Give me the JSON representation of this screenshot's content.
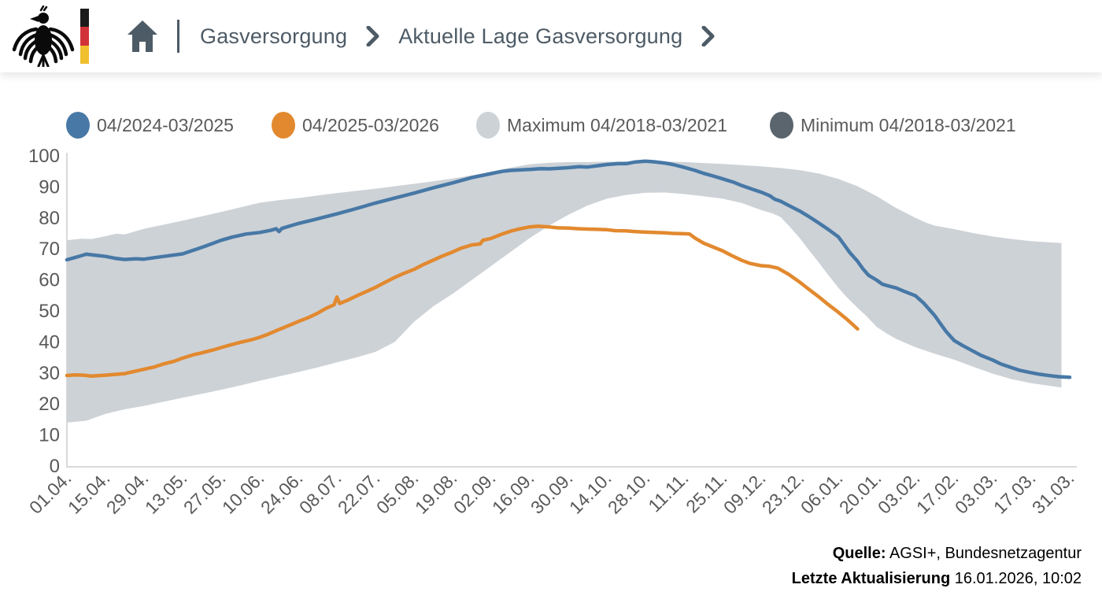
{
  "header": {
    "breadcrumb": {
      "items": [
        "Gasversorgung",
        "Aktuelle Lage Gasversorgung"
      ]
    }
  },
  "footer": {
    "source_label": "Quelle:",
    "source_text": "AGSI+, Bundesnetzagentur",
    "updated_label": "Letzte Aktualisierung",
    "updated_text": "16.01.2026, 10:02"
  },
  "chart_data": {
    "type": "line",
    "title": "",
    "ylabel": "",
    "xlabel": "",
    "ylim": [
      0,
      100
    ],
    "grid": false,
    "legend_position": "top",
    "yticks": [
      0,
      10,
      20,
      30,
      40,
      50,
      60,
      70,
      80,
      90,
      100
    ],
    "xticks": [
      {
        "d": 0,
        "label": "01.04."
      },
      {
        "d": 14,
        "label": "15.04."
      },
      {
        "d": 28,
        "label": "29.04."
      },
      {
        "d": 42,
        "label": "13.05."
      },
      {
        "d": 56,
        "label": "27.05."
      },
      {
        "d": 70,
        "label": "10.06."
      },
      {
        "d": 84,
        "label": "24.06."
      },
      {
        "d": 98,
        "label": "08.07."
      },
      {
        "d": 112,
        "label": "22.07."
      },
      {
        "d": 126,
        "label": "05.08."
      },
      {
        "d": 140,
        "label": "19.08."
      },
      {
        "d": 154,
        "label": "02.09."
      },
      {
        "d": 168,
        "label": "16.09."
      },
      {
        "d": 182,
        "label": "30.09."
      },
      {
        "d": 196,
        "label": "14.10."
      },
      {
        "d": 210,
        "label": "28.10."
      },
      {
        "d": 224,
        "label": "11.11."
      },
      {
        "d": 238,
        "label": "25.11."
      },
      {
        "d": 252,
        "label": "09.12."
      },
      {
        "d": 266,
        "label": "23.12."
      },
      {
        "d": 280,
        "label": "06.01."
      },
      {
        "d": 294,
        "label": "20.01."
      },
      {
        "d": 308,
        "label": "03.02."
      },
      {
        "d": 322,
        "label": "17.02."
      },
      {
        "d": 336,
        "label": "03.03."
      },
      {
        "d": 350,
        "label": "17.03."
      },
      {
        "d": 364,
        "label": "31.03."
      }
    ],
    "legend": [
      {
        "label": "04/2024-03/2025",
        "color": "#4778a6"
      },
      {
        "label": "04/2025-03/2026",
        "color": "#e2892f"
      },
      {
        "label": "Maximum 04/2018-03/2021",
        "color": "#cdd2d7"
      },
      {
        "label": "Minimum 04/2018-03/2021",
        "color": "#5a656e"
      }
    ],
    "band": {
      "max_name": "Maximum 04/2018-03/2021",
      "min_name": "Minimum 04/2018-03/2021",
      "color": "#cdd2d7",
      "max_points": [
        [
          0,
          72.8
        ],
        [
          5,
          73.3
        ],
        [
          9,
          73.2
        ],
        [
          14,
          74.1
        ],
        [
          18,
          74.9
        ],
        [
          21,
          74.7
        ],
        [
          28,
          76.5
        ],
        [
          35,
          77.8
        ],
        [
          42,
          79.1
        ],
        [
          49,
          80.5
        ],
        [
          56,
          81.9
        ],
        [
          63,
          83.4
        ],
        [
          70,
          84.9
        ],
        [
          77,
          85.7
        ],
        [
          84,
          86.4
        ],
        [
          91,
          87.2
        ],
        [
          98,
          88.0
        ],
        [
          105,
          88.7
        ],
        [
          112,
          89.4
        ],
        [
          119,
          90.2
        ],
        [
          126,
          91.0
        ],
        [
          133,
          91.8
        ],
        [
          140,
          92.7
        ],
        [
          147,
          93.7
        ],
        [
          154,
          94.9
        ],
        [
          161,
          96.2
        ],
        [
          168,
          97.3
        ],
        [
          175,
          97.8
        ],
        [
          182,
          98.0
        ],
        [
          189,
          98.0
        ],
        [
          196,
          98.1
        ],
        [
          203,
          98.2
        ],
        [
          210,
          98.4
        ],
        [
          217,
          98.2
        ],
        [
          224,
          98.0
        ],
        [
          231,
          97.7
        ],
        [
          238,
          97.4
        ],
        [
          245,
          97.0
        ],
        [
          252,
          96.6
        ],
        [
          259,
          96.1
        ],
        [
          266,
          95.4
        ],
        [
          273,
          94.3
        ],
        [
          280,
          92.6
        ],
        [
          287,
          90.2
        ],
        [
          294,
          87.0
        ],
        [
          298,
          84.8
        ],
        [
          301,
          83.2
        ],
        [
          308,
          80.0
        ],
        [
          312,
          78.4
        ],
        [
          315,
          77.5
        ],
        [
          322,
          76.4
        ],
        [
          329,
          75.1
        ],
        [
          336,
          74.0
        ],
        [
          343,
          73.2
        ],
        [
          350,
          72.5
        ],
        [
          357,
          72.1
        ],
        [
          361,
          71.9
        ]
      ],
      "min_points": [
        [
          0,
          14.0
        ],
        [
          7,
          14.6
        ],
        [
          14,
          16.8
        ],
        [
          21,
          18.3
        ],
        [
          28,
          19.4
        ],
        [
          35,
          20.7
        ],
        [
          42,
          22.0
        ],
        [
          49,
          23.3
        ],
        [
          56,
          24.6
        ],
        [
          63,
          26.0
        ],
        [
          70,
          27.5
        ],
        [
          77,
          28.9
        ],
        [
          84,
          30.3
        ],
        [
          91,
          31.8
        ],
        [
          98,
          33.4
        ],
        [
          105,
          35.0
        ],
        [
          112,
          36.8
        ],
        [
          119,
          40.0
        ],
        [
          126,
          46.5
        ],
        [
          133,
          51.5
        ],
        [
          140,
          55.5
        ],
        [
          147,
          60.0
        ],
        [
          154,
          64.5
        ],
        [
          161,
          69.0
        ],
        [
          168,
          73.5
        ],
        [
          175,
          77.5
        ],
        [
          182,
          81.0
        ],
        [
          189,
          84.0
        ],
        [
          196,
          86.2
        ],
        [
          203,
          87.4
        ],
        [
          210,
          88.1
        ],
        [
          217,
          88.2
        ],
        [
          224,
          87.7
        ],
        [
          231,
          87.0
        ],
        [
          238,
          86.2
        ],
        [
          245,
          84.8
        ],
        [
          252,
          82.5
        ],
        [
          256,
          81.5
        ],
        [
          259,
          80.3
        ],
        [
          262,
          77.5
        ],
        [
          266,
          73.5
        ],
        [
          269,
          70.0
        ],
        [
          273,
          65.5
        ],
        [
          276,
          62.0
        ],
        [
          280,
          57.5
        ],
        [
          283,
          54.5
        ],
        [
          287,
          51.0
        ],
        [
          290,
          48.5
        ],
        [
          294,
          44.8
        ],
        [
          298,
          42.5
        ],
        [
          301,
          41.0
        ],
        [
          308,
          38.3
        ],
        [
          315,
          36.2
        ],
        [
          322,
          34.3
        ],
        [
          329,
          32.0
        ],
        [
          336,
          29.8
        ],
        [
          343,
          28.0
        ],
        [
          350,
          26.7
        ],
        [
          357,
          25.8
        ],
        [
          361,
          25.3
        ]
      ]
    },
    "series": [
      {
        "name": "04/2024-03/2025",
        "color": "#4778a6",
        "points": [
          [
            0,
            66.5
          ],
          [
            4,
            67.5
          ],
          [
            7,
            68.3
          ],
          [
            10,
            68.0
          ],
          [
            14,
            67.6
          ],
          [
            18,
            66.9
          ],
          [
            21,
            66.6
          ],
          [
            25,
            66.8
          ],
          [
            28,
            66.7
          ],
          [
            32,
            67.2
          ],
          [
            36,
            67.7
          ],
          [
            42,
            68.4
          ],
          [
            46,
            69.6
          ],
          [
            50,
            70.8
          ],
          [
            56,
            72.8
          ],
          [
            60,
            73.8
          ],
          [
            65,
            74.8
          ],
          [
            70,
            75.3
          ],
          [
            74,
            76.0
          ],
          [
            76,
            76.5
          ],
          [
            77,
            75.6
          ],
          [
            78,
            76.6
          ],
          [
            84,
            78.2
          ],
          [
            90,
            79.5
          ],
          [
            98,
            81.3
          ],
          [
            105,
            83.0
          ],
          [
            112,
            84.8
          ],
          [
            119,
            86.4
          ],
          [
            126,
            88.0
          ],
          [
            133,
            89.7
          ],
          [
            140,
            91.3
          ],
          [
            147,
            93.0
          ],
          [
            154,
            94.3
          ],
          [
            158,
            95.0
          ],
          [
            161,
            95.3
          ],
          [
            165,
            95.5
          ],
          [
            168,
            95.6
          ],
          [
            172,
            95.9
          ],
          [
            175,
            95.8
          ],
          [
            182,
            96.2
          ],
          [
            186,
            96.5
          ],
          [
            189,
            96.4
          ],
          [
            196,
            97.2
          ],
          [
            200,
            97.5
          ],
          [
            203,
            97.5
          ],
          [
            206,
            98.0
          ],
          [
            210,
            98.3
          ],
          [
            213,
            98.1
          ],
          [
            217,
            97.7
          ],
          [
            220,
            97.2
          ],
          [
            224,
            96.3
          ],
          [
            228,
            95.3
          ],
          [
            231,
            94.4
          ],
          [
            235,
            93.4
          ],
          [
            238,
            92.6
          ],
          [
            242,
            91.5
          ],
          [
            245,
            90.4
          ],
          [
            249,
            89.2
          ],
          [
            252,
            88.3
          ],
          [
            255,
            87.2
          ],
          [
            257,
            86.0
          ],
          [
            259,
            85.4
          ],
          [
            262,
            84.0
          ],
          [
            266,
            82.2
          ],
          [
            269,
            80.6
          ],
          [
            273,
            78.3
          ],
          [
            276,
            76.5
          ],
          [
            280,
            73.9
          ],
          [
            282,
            71.5
          ],
          [
            284,
            69.0
          ],
          [
            287,
            66.0
          ],
          [
            289,
            63.5
          ],
          [
            291,
            61.5
          ],
          [
            294,
            59.9
          ],
          [
            296,
            58.6
          ],
          [
            298,
            58.1
          ],
          [
            301,
            57.4
          ],
          [
            304,
            56.3
          ],
          [
            308,
            54.9
          ],
          [
            311,
            52.5
          ],
          [
            313,
            50.5
          ],
          [
            315,
            48.5
          ],
          [
            317,
            46.0
          ],
          [
            319,
            43.5
          ],
          [
            322,
            40.5
          ],
          [
            325,
            38.9
          ],
          [
            329,
            37.0
          ],
          [
            332,
            35.6
          ],
          [
            336,
            34.2
          ],
          [
            339,
            32.9
          ],
          [
            343,
            31.7
          ],
          [
            346,
            30.8
          ],
          [
            350,
            30.1
          ],
          [
            353,
            29.6
          ],
          [
            357,
            29.1
          ],
          [
            360,
            28.8
          ],
          [
            364,
            28.6
          ]
        ]
      },
      {
        "name": "04/2025-03/2026",
        "color": "#e2892f",
        "points": [
          [
            0,
            29.2
          ],
          [
            3,
            29.4
          ],
          [
            6,
            29.3
          ],
          [
            9,
            29.0
          ],
          [
            12,
            29.2
          ],
          [
            14,
            29.3
          ],
          [
            17,
            29.5
          ],
          [
            21,
            29.8
          ],
          [
            24,
            30.4
          ],
          [
            28,
            31.2
          ],
          [
            32,
            32.0
          ],
          [
            35,
            32.9
          ],
          [
            39,
            33.8
          ],
          [
            42,
            34.8
          ],
          [
            46,
            35.9
          ],
          [
            49,
            36.5
          ],
          [
            53,
            37.4
          ],
          [
            56,
            38.2
          ],
          [
            60,
            39.2
          ],
          [
            63,
            39.9
          ],
          [
            67,
            40.7
          ],
          [
            70,
            41.5
          ],
          [
            73,
            42.5
          ],
          [
            77,
            44.0
          ],
          [
            80,
            45.1
          ],
          [
            84,
            46.6
          ],
          [
            88,
            48.0
          ],
          [
            91,
            49.3
          ],
          [
            94,
            50.8
          ],
          [
            96,
            51.6
          ],
          [
            97,
            52.0
          ],
          [
            98,
            54.5
          ],
          [
            99,
            52.4
          ],
          [
            102,
            53.5
          ],
          [
            105,
            54.8
          ],
          [
            108,
            56.0
          ],
          [
            112,
            57.6
          ],
          [
            115,
            59.0
          ],
          [
            119,
            60.8
          ],
          [
            122,
            62.0
          ],
          [
            126,
            63.4
          ],
          [
            129,
            64.8
          ],
          [
            133,
            66.4
          ],
          [
            136,
            67.6
          ],
          [
            140,
            69.0
          ],
          [
            143,
            70.2
          ],
          [
            147,
            71.3
          ],
          [
            150,
            71.6
          ],
          [
            151,
            72.8
          ],
          [
            154,
            73.4
          ],
          [
            158,
            74.8
          ],
          [
            161,
            75.7
          ],
          [
            164,
            76.4
          ],
          [
            168,
            77.1
          ],
          [
            171,
            77.3
          ],
          [
            175,
            77.1
          ],
          [
            178,
            76.8
          ],
          [
            182,
            76.7
          ],
          [
            186,
            76.5
          ],
          [
            189,
            76.4
          ],
          [
            193,
            76.3
          ],
          [
            196,
            76.2
          ],
          [
            199,
            75.9
          ],
          [
            203,
            75.8
          ],
          [
            206,
            75.6
          ],
          [
            210,
            75.4
          ],
          [
            213,
            75.3
          ],
          [
            217,
            75.2
          ],
          [
            220,
            75.0
          ],
          [
            224,
            74.9
          ],
          [
            226,
            74.8
          ],
          [
            228,
            73.5
          ],
          [
            231,
            71.9
          ],
          [
            234,
            70.8
          ],
          [
            238,
            69.4
          ],
          [
            241,
            68.0
          ],
          [
            245,
            66.3
          ],
          [
            248,
            65.3
          ],
          [
            252,
            64.6
          ],
          [
            255,
            64.4
          ],
          [
            258,
            63.8
          ],
          [
            262,
            61.8
          ],
          [
            266,
            59.3
          ],
          [
            269,
            57.2
          ],
          [
            273,
            54.5
          ],
          [
            276,
            52.3
          ],
          [
            280,
            49.6
          ],
          [
            283,
            47.4
          ],
          [
            285,
            45.8
          ],
          [
            287,
            44.2
          ]
        ]
      }
    ]
  }
}
